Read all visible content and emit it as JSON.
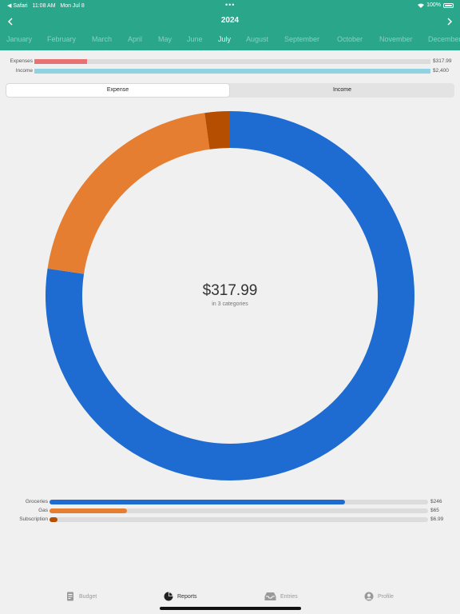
{
  "status_bar": {
    "back_app": "◀ Safari",
    "time": "11:08 AM",
    "date": "Mon Jul 8",
    "dots": "•••",
    "battery": "100%"
  },
  "header": {
    "year": "2024",
    "prev_icon": "chevron-left-icon",
    "next_icon": "chevron-right-icon",
    "months": [
      "January",
      "February",
      "March",
      "April",
      "May",
      "June",
      "July",
      "August",
      "September",
      "October",
      "November",
      "December"
    ],
    "selected_month": "July"
  },
  "summary": [
    {
      "label": "Expenses",
      "value": "$317.99",
      "fraction": 0.1325,
      "color": "#e57373"
    },
    {
      "label": "Income",
      "value": "$2,400",
      "fraction": 1.0,
      "color": "#8fd3e3"
    }
  ],
  "segmented": {
    "options": [
      "Expense",
      "Income"
    ],
    "selected": "Expense"
  },
  "donut": {
    "total": "$317.99",
    "subtitle": "in 3 categories"
  },
  "chart_data": {
    "type": "pie",
    "slices": [
      {
        "label": "Groceries",
        "value": 246,
        "color": "#1e6bd1"
      },
      {
        "label": "Gas",
        "value": 65,
        "color": "#e67e32"
      },
      {
        "label": "Subscription",
        "value": 6.99,
        "color": "#b54e00"
      }
    ]
  },
  "categories": [
    {
      "label": "Groceries",
      "value": "$246",
      "fraction": 0.78,
      "color": "#1e6bd1"
    },
    {
      "label": "Gas",
      "value": "$65",
      "fraction": 0.205,
      "color": "#e67e32"
    },
    {
      "label": "Subscription",
      "value": "$6.99",
      "fraction": 0.022,
      "color": "#b54e00"
    }
  ],
  "tabbar": {
    "items": [
      {
        "label": "Budget",
        "icon": "document-icon"
      },
      {
        "label": "Reports",
        "icon": "pie-chart-icon"
      },
      {
        "label": "Entries",
        "icon": "inbox-tray-icon"
      },
      {
        "label": "Profile",
        "icon": "person-icon"
      }
    ],
    "selected": "Reports"
  }
}
